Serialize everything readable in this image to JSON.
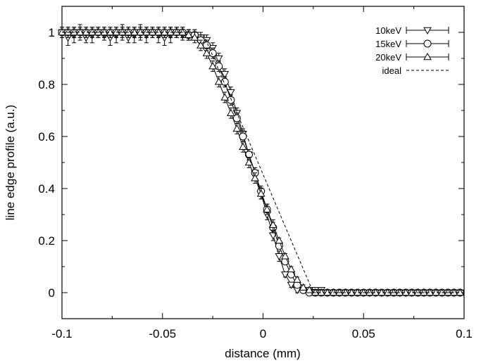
{
  "chart_data": {
    "type": "line",
    "title": "",
    "xlabel": "distance (mm)",
    "ylabel": "line edge profile (a.u.)",
    "xlim": [
      -0.1,
      0.1
    ],
    "ylim": [
      -0.1,
      1.1
    ],
    "grid": false,
    "legend_position": "top-right",
    "x_ticks": [
      -0.1,
      -0.05,
      0,
      0.05,
      0.1
    ],
    "x_tick_labels": [
      "-0.1",
      "-0.05",
      "0",
      "0.05",
      "0.1"
    ],
    "y_ticks": [
      0,
      0.2,
      0.4,
      0.6,
      0.8,
      1.0
    ],
    "y_tick_labels": [
      "0",
      "0.2",
      "0.4",
      "0.6",
      "0.8",
      "1"
    ],
    "series": [
      {
        "name": "10keV",
        "marker": "triangle-down",
        "style": "solid-errorbars",
        "x": [
          -0.1,
          -0.097,
          -0.094,
          -0.091,
          -0.088,
          -0.085,
          -0.082,
          -0.079,
          -0.076,
          -0.073,
          -0.07,
          -0.067,
          -0.064,
          -0.061,
          -0.058,
          -0.055,
          -0.052,
          -0.049,
          -0.046,
          -0.043,
          -0.04,
          -0.037,
          -0.034,
          -0.031,
          -0.028,
          -0.025,
          -0.022,
          -0.019,
          -0.016,
          -0.013,
          -0.01,
          -0.007,
          -0.004,
          -0.001,
          0.002,
          0.005,
          0.008,
          0.011,
          0.014,
          0.017,
          0.02,
          0.023,
          0.026,
          0.029,
          0.032,
          0.035,
          0.038,
          0.041,
          0.044,
          0.047,
          0.05,
          0.053,
          0.056,
          0.059,
          0.062,
          0.065,
          0.068,
          0.071,
          0.074,
          0.077,
          0.08,
          0.083,
          0.086,
          0.089,
          0.092,
          0.095,
          0.098
        ],
        "y": [
          1.0,
          0.98,
          0.99,
          1.0,
          0.98,
          0.99,
          1.0,
          0.99,
          0.98,
          0.99,
          1.0,
          0.98,
          0.99,
          1.0,
          0.99,
          1.0,
          0.99,
          0.98,
          0.99,
          1.0,
          0.99,
          0.99,
          0.99,
          0.98,
          0.97,
          0.94,
          0.9,
          0.84,
          0.77,
          0.69,
          0.61,
          0.53,
          0.46,
          0.38,
          0.3,
          0.22,
          0.14,
          0.07,
          0.03,
          0.01,
          0.01,
          0.01,
          0.01,
          0.01,
          0.0,
          0.0,
          0.0,
          0.0,
          0.0,
          0.0,
          0.0,
          0.0,
          0.0,
          0.0,
          0.0,
          0.0,
          0.0,
          0.0,
          0.0,
          0.0,
          0.0,
          0.0,
          0.0,
          0.0,
          0.0,
          0.0,
          0.0
        ],
        "err": [
          0.02,
          0.03,
          0.03,
          0.03,
          0.02,
          0.03,
          0.02,
          0.02,
          0.03,
          0.03,
          0.03,
          0.02,
          0.03,
          0.03,
          0.03,
          0.02,
          0.03,
          0.03,
          0.03,
          0.02,
          0.02,
          0.02,
          0.02,
          0.02,
          0.02,
          0.02,
          0.02,
          0.02,
          0.02,
          0.02,
          0.02,
          0.02,
          0.02,
          0.02,
          0.02,
          0.02,
          0.02,
          0.01,
          0.01,
          0.01,
          0.01,
          0.01,
          0.01,
          0.01,
          0.01,
          0.01,
          0.01,
          0.01,
          0.01,
          0.01,
          0.01,
          0.01,
          0.01,
          0.01,
          0.01,
          0.01,
          0.01,
          0.01,
          0.01,
          0.01,
          0.01,
          0.01,
          0.01,
          0.01,
          0.01,
          0.01,
          0.01
        ]
      },
      {
        "name": "15keV",
        "marker": "circle",
        "style": "solid-errorbars",
        "x": [
          -0.1,
          -0.097,
          -0.094,
          -0.091,
          -0.088,
          -0.085,
          -0.082,
          -0.079,
          -0.076,
          -0.073,
          -0.07,
          -0.067,
          -0.064,
          -0.061,
          -0.058,
          -0.055,
          -0.052,
          -0.049,
          -0.046,
          -0.043,
          -0.04,
          -0.037,
          -0.034,
          -0.031,
          -0.028,
          -0.025,
          -0.022,
          -0.019,
          -0.016,
          -0.013,
          -0.01,
          -0.007,
          -0.004,
          -0.001,
          0.002,
          0.005,
          0.008,
          0.011,
          0.014,
          0.017,
          0.02,
          0.023,
          0.026,
          0.029,
          0.032,
          0.035,
          0.038,
          0.041,
          0.044,
          0.047,
          0.05,
          0.053,
          0.056,
          0.059,
          0.062,
          0.065,
          0.068,
          0.071,
          0.074,
          0.077,
          0.08,
          0.083,
          0.086,
          0.089,
          0.092,
          0.095,
          0.098
        ],
        "y": [
          1.0,
          1.0,
          1.0,
          1.0,
          1.0,
          1.0,
          1.0,
          1.0,
          1.0,
          1.0,
          1.0,
          1.0,
          1.0,
          1.0,
          1.0,
          1.0,
          1.0,
          1.0,
          1.0,
          1.0,
          1.0,
          0.99,
          0.99,
          0.97,
          0.95,
          0.92,
          0.87,
          0.81,
          0.74,
          0.67,
          0.6,
          0.53,
          0.46,
          0.39,
          0.32,
          0.25,
          0.18,
          0.12,
          0.07,
          0.03,
          0.01,
          0.0,
          0.0,
          0.0,
          0.0,
          0.0,
          0.0,
          0.0,
          0.0,
          0.0,
          0.0,
          0.0,
          0.0,
          0.0,
          0.0,
          0.0,
          0.0,
          0.0,
          0.0,
          0.0,
          0.0,
          0.0,
          0.0,
          0.0,
          0.0,
          0.0,
          0.0
        ],
        "err": [
          0.02,
          0.02,
          0.02,
          0.02,
          0.02,
          0.02,
          0.02,
          0.02,
          0.02,
          0.02,
          0.02,
          0.02,
          0.02,
          0.02,
          0.02,
          0.02,
          0.02,
          0.02,
          0.02,
          0.02,
          0.02,
          0.02,
          0.02,
          0.02,
          0.02,
          0.02,
          0.02,
          0.02,
          0.02,
          0.02,
          0.02,
          0.02,
          0.02,
          0.02,
          0.02,
          0.02,
          0.01,
          0.01,
          0.01,
          0.01,
          0.01,
          0.01,
          0.01,
          0.01,
          0.01,
          0.01,
          0.01,
          0.01,
          0.01,
          0.01,
          0.01,
          0.01,
          0.01,
          0.01,
          0.01,
          0.01,
          0.01,
          0.01,
          0.01,
          0.01,
          0.01,
          0.01,
          0.01,
          0.01,
          0.01,
          0.01,
          0.01
        ]
      },
      {
        "name": "20keV",
        "marker": "triangle-up",
        "style": "solid-errorbars",
        "x": [
          -0.1,
          -0.097,
          -0.094,
          -0.091,
          -0.088,
          -0.085,
          -0.082,
          -0.079,
          -0.076,
          -0.073,
          -0.07,
          -0.067,
          -0.064,
          -0.061,
          -0.058,
          -0.055,
          -0.052,
          -0.049,
          -0.046,
          -0.043,
          -0.04,
          -0.037,
          -0.034,
          -0.031,
          -0.028,
          -0.025,
          -0.022,
          -0.019,
          -0.016,
          -0.013,
          -0.01,
          -0.007,
          -0.004,
          -0.001,
          0.002,
          0.005,
          0.008,
          0.011,
          0.014,
          0.017,
          0.02,
          0.023,
          0.026,
          0.029,
          0.032,
          0.035,
          0.038,
          0.041,
          0.044,
          0.047,
          0.05,
          0.053,
          0.056,
          0.059,
          0.062,
          0.065,
          0.068,
          0.071,
          0.074,
          0.077,
          0.08,
          0.083,
          0.086,
          0.089,
          0.092,
          0.095,
          0.098
        ],
        "y": [
          1.0,
          1.0,
          1.0,
          1.0,
          1.0,
          1.0,
          1.0,
          1.0,
          1.0,
          1.0,
          1.0,
          1.0,
          1.0,
          1.0,
          1.0,
          1.0,
          1.0,
          1.0,
          1.0,
          1.0,
          1.0,
          0.99,
          0.98,
          0.95,
          0.92,
          0.87,
          0.81,
          0.75,
          0.69,
          0.63,
          0.56,
          0.5,
          0.44,
          0.38,
          0.32,
          0.26,
          0.2,
          0.14,
          0.09,
          0.05,
          0.02,
          0.01,
          0.0,
          0.0,
          0.0,
          0.0,
          0.0,
          0.0,
          0.0,
          0.0,
          0.0,
          0.0,
          0.0,
          0.0,
          0.0,
          0.0,
          0.0,
          0.0,
          0.0,
          0.0,
          0.0,
          0.0,
          0.0,
          0.0,
          0.0,
          0.0,
          0.0
        ],
        "err": [
          0.02,
          0.02,
          0.02,
          0.02,
          0.02,
          0.02,
          0.02,
          0.02,
          0.02,
          0.02,
          0.02,
          0.02,
          0.02,
          0.02,
          0.02,
          0.02,
          0.02,
          0.02,
          0.02,
          0.02,
          0.02,
          0.02,
          0.02,
          0.02,
          0.02,
          0.02,
          0.02,
          0.02,
          0.02,
          0.02,
          0.02,
          0.02,
          0.02,
          0.02,
          0.02,
          0.02,
          0.01,
          0.01,
          0.01,
          0.01,
          0.01,
          0.01,
          0.01,
          0.01,
          0.01,
          0.01,
          0.01,
          0.01,
          0.01,
          0.01,
          0.01,
          0.01,
          0.01,
          0.01,
          0.01,
          0.01,
          0.01,
          0.01,
          0.01,
          0.01,
          0.01,
          0.01,
          0.01,
          0.01,
          0.01,
          0.01,
          0.01
        ]
      },
      {
        "name": "ideal",
        "marker": "none",
        "style": "dashed",
        "x": [
          -0.1,
          -0.03,
          0.025,
          0.1
        ],
        "y": [
          1.0,
          1.0,
          0.0,
          0.0
        ]
      }
    ]
  }
}
